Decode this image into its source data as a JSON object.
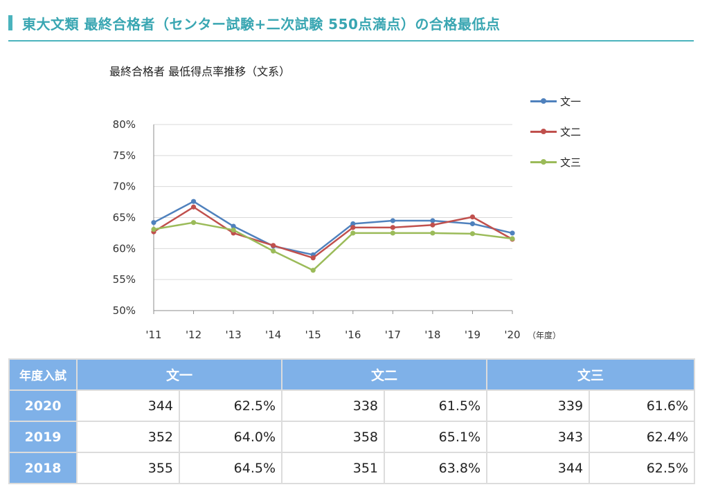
{
  "page": {
    "heading": "東大文類 最終合格者（センター試験+二次試験 550点満点）の合格最低点"
  },
  "chart_data": {
    "type": "line",
    "title": "最終合格者 最低得点率推移（文系）",
    "xlabel": "（年度）",
    "ylabel": "",
    "categories": [
      "'11",
      "'12",
      "'13",
      "'14",
      "'15",
      "'16",
      "'17",
      "'18",
      "'19",
      "'20"
    ],
    "ylim": [
      50,
      80
    ],
    "yticks": [
      50,
      55,
      60,
      65,
      70,
      75,
      80
    ],
    "ytick_labels": [
      "50%",
      "55%",
      "60%",
      "65%",
      "70%",
      "75%",
      "80%"
    ],
    "grid": "horizontal",
    "legend": "right",
    "series": [
      {
        "name": "文一",
        "color": "#4f81bd",
        "values": [
          64.2,
          67.6,
          63.6,
          60.4,
          59.0,
          64.0,
          64.5,
          64.5,
          64.0,
          62.5
        ]
      },
      {
        "name": "文二",
        "color": "#c0504d",
        "values": [
          62.7,
          66.7,
          62.5,
          60.5,
          58.5,
          63.4,
          63.4,
          63.8,
          65.1,
          61.5
        ]
      },
      {
        "name": "文三",
        "color": "#9bbb59",
        "values": [
          63.1,
          64.2,
          63.0,
          59.6,
          56.5,
          62.5,
          62.5,
          62.5,
          62.4,
          61.6
        ]
      }
    ]
  },
  "table": {
    "header_corner": "年度入試",
    "headers": [
      "文一",
      "文二",
      "文三"
    ],
    "rows": [
      {
        "year": "2020",
        "cells": [
          "344",
          "62.5%",
          "338",
          "61.5%",
          "339",
          "61.6%"
        ]
      },
      {
        "year": "2019",
        "cells": [
          "352",
          "64.0%",
          "358",
          "65.1%",
          "343",
          "62.4%"
        ]
      },
      {
        "year": "2018",
        "cells": [
          "355",
          "64.5%",
          "351",
          "63.8%",
          "344",
          "62.5%"
        ]
      }
    ]
  }
}
